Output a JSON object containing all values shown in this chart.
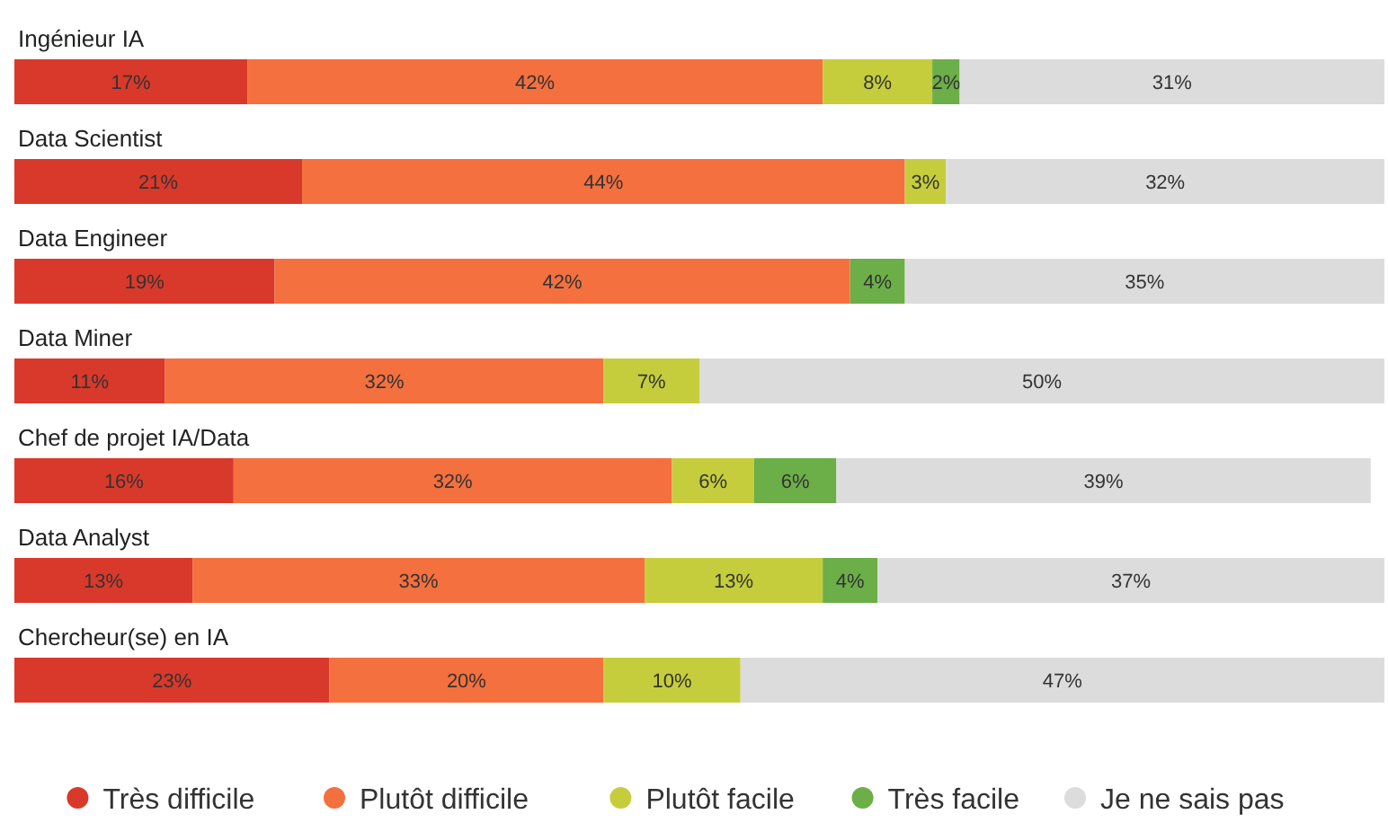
{
  "chart_data": {
    "type": "bar",
    "orientation": "horizontal",
    "stacked": true,
    "legend": "bottom",
    "categories": [
      "Ingénieur IA",
      "Data Scientist",
      "Data Engineer",
      "Data Miner",
      "Chef de projet IA/Data",
      "Data Analyst",
      "Chercheur(se) en IA"
    ],
    "series": [
      {
        "name": "Très difficile",
        "color": "#d9392b",
        "values": [
          17,
          21,
          19,
          11,
          16,
          13,
          23
        ],
        "value_labels": [
          "17%",
          "21%",
          "19%",
          "11%",
          "16%",
          "13%",
          "23%"
        ]
      },
      {
        "name": "Plutôt difficile",
        "color": "#f4703f",
        "values": [
          42,
          44,
          42,
          32,
          32,
          33,
          20
        ],
        "value_labels": [
          "42%",
          "44%",
          "42%",
          "32%",
          "32%",
          "33%",
          "20%"
        ]
      },
      {
        "name": "Plutôt facile",
        "color": "#c6cd3c",
        "values": [
          8,
          3,
          null,
          7,
          6,
          13,
          10
        ],
        "value_labels": [
          "8%",
          "3%",
          null,
          "7%",
          "6%",
          "13%",
          "10%"
        ]
      },
      {
        "name": "Très facile",
        "color": "#6cae48",
        "values": [
          2,
          null,
          4,
          null,
          6,
          4,
          null
        ],
        "value_labels": [
          "2%",
          null,
          "4%",
          null,
          "6%",
          "4%",
          null
        ]
      },
      {
        "name": "Je ne sais pas",
        "color": "#dcdcdc",
        "values": [
          31,
          32,
          35,
          50,
          39,
          37,
          47
        ],
        "value_labels": [
          "31%",
          "32%",
          "35%",
          "50%",
          "39%",
          "37%",
          "47%"
        ]
      }
    ]
  }
}
